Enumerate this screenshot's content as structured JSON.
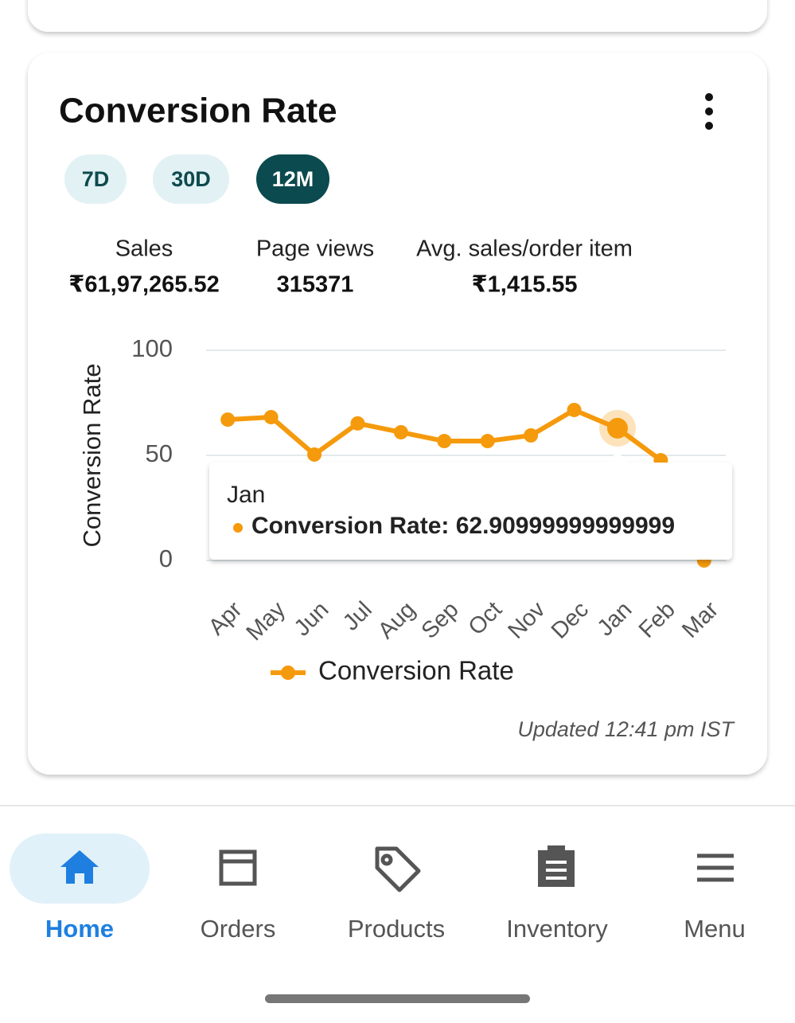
{
  "card": {
    "title": "Conversion Rate",
    "ranges": [
      {
        "label": "7D",
        "selected": false
      },
      {
        "label": "30D",
        "selected": false
      },
      {
        "label": "12M",
        "selected": true
      }
    ],
    "stats": [
      {
        "label": "Sales",
        "value": "₹61,97,265.52"
      },
      {
        "label": "Page views",
        "value": "315371"
      },
      {
        "label": "Avg. sales/order item",
        "value": "₹1,415.55"
      }
    ],
    "chart_data": {
      "type": "line",
      "y_label": "Conversion Rate",
      "categories": [
        "Apr",
        "May",
        "Jun",
        "Jul",
        "Aug",
        "Sep",
        "Oct",
        "Nov",
        "Dec",
        "Jan",
        "Feb",
        "Mar"
      ],
      "series": [
        {
          "name": "Conversion Rate",
          "color": "#f59a0c",
          "values": [
            67.0,
            68.2,
            50.4,
            65.2,
            61.0,
            56.8,
            56.8,
            59.5,
            71.6,
            62.90999999999999,
            47.7,
            0
          ]
        }
      ],
      "ylim": [
        0,
        100
      ],
      "yticks": [
        0,
        50,
        100
      ],
      "grid": true,
      "legend": "bottom",
      "highlight": 9
    },
    "tooltip": {
      "title": "Jan",
      "text": "Conversion Rate: 62.90999999999999"
    },
    "updated": "Updated 12:41 pm IST"
  },
  "nav": [
    {
      "label": "Home",
      "active": true
    },
    {
      "label": "Orders",
      "active": false
    },
    {
      "label": "Products",
      "active": false
    },
    {
      "label": "Inventory",
      "active": false
    },
    {
      "label": "Menu",
      "active": false
    }
  ]
}
